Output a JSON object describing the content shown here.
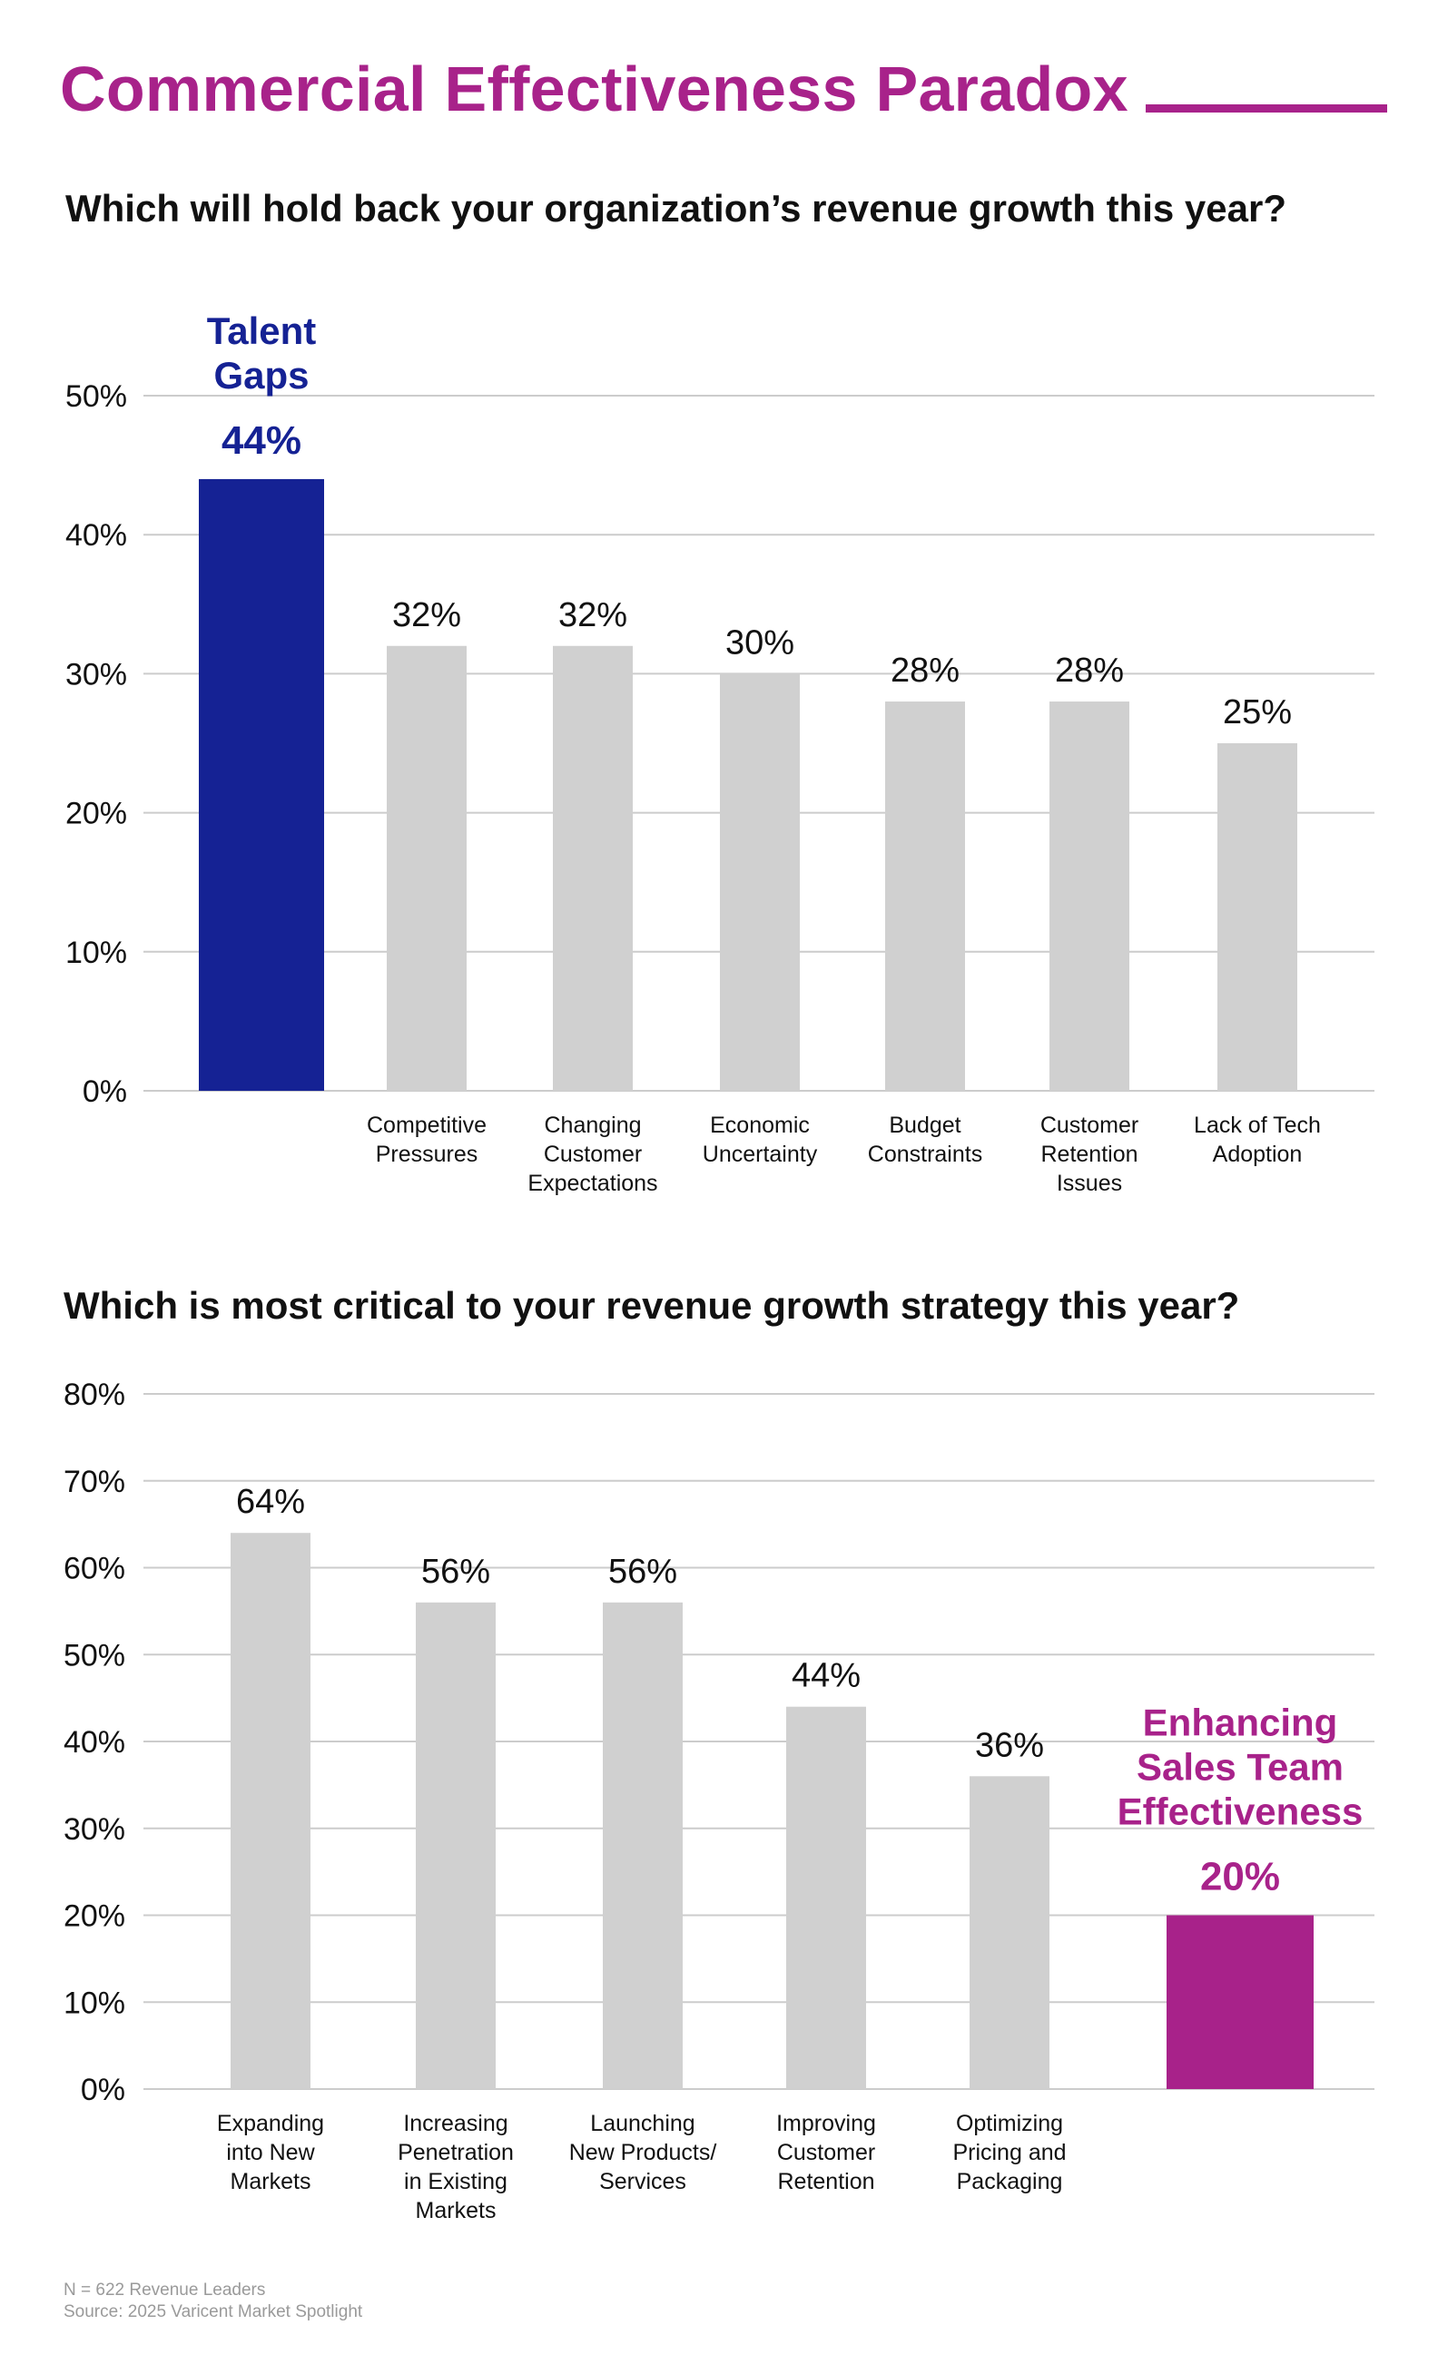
{
  "page_title": "Commercial Effectiveness Paradox",
  "colors": {
    "accent_magenta": "#a8228a",
    "accent_navy": "#152294",
    "bar_gray": "#d0d0d0",
    "grid": "#cccccc",
    "text": "#111111"
  },
  "chart_data": [
    {
      "type": "bar",
      "title": "Which will hold back your organization’s revenue growth this year?",
      "xlabel": "",
      "ylabel": "",
      "ylim": [
        0,
        50
      ],
      "yticks": [
        "0%",
        "10%",
        "20%",
        "30%",
        "40%",
        "50%"
      ],
      "grid": true,
      "categories": [
        [
          "Talent",
          "Gaps"
        ],
        [
          "Competitive",
          "Pressures"
        ],
        [
          "Changing",
          "Customer",
          "Expectations"
        ],
        [
          "Economic",
          "Uncertainty"
        ],
        [
          "Budget",
          "Constraints"
        ],
        [
          "Customer",
          "Retention",
          "Issues"
        ],
        [
          "Lack of Tech",
          "Adoption"
        ]
      ],
      "values": [
        44,
        32,
        32,
        30,
        28,
        28,
        25
      ],
      "data_labels": [
        "44%",
        "32%",
        "32%",
        "30%",
        "28%",
        "28%",
        "25%"
      ],
      "highlight": {
        "index": 0,
        "color": "#152294",
        "label_above_bar": true
      }
    },
    {
      "type": "bar",
      "title": "Which is most critical to your revenue growth strategy this year?",
      "xlabel": "",
      "ylabel": "",
      "ylim": [
        0,
        80
      ],
      "yticks": [
        "0%",
        "10%",
        "20%",
        "30%",
        "40%",
        "50%",
        "60%",
        "70%",
        "80%"
      ],
      "grid": true,
      "categories": [
        [
          "Expanding",
          "into New",
          "Markets"
        ],
        [
          "Increasing",
          "Penetration",
          "in Existing",
          "Markets"
        ],
        [
          "Launching",
          "New Products/",
          "Services"
        ],
        [
          "Improving",
          "Customer",
          "Retention"
        ],
        [
          "Optimizing",
          "Pricing and",
          "Packaging"
        ],
        [
          "Enhancing",
          "Sales Team",
          "Effectiveness"
        ]
      ],
      "values": [
        64,
        56,
        56,
        44,
        36,
        20
      ],
      "data_labels": [
        "64%",
        "56%",
        "56%",
        "44%",
        "36%",
        "20%"
      ],
      "highlight": {
        "index": 5,
        "color": "#a8228a",
        "label_above_bar": true
      }
    }
  ],
  "footnote": {
    "sample": "N = 622 Revenue Leaders",
    "source": "Source: 2025 Varicent Market Spotlight"
  }
}
